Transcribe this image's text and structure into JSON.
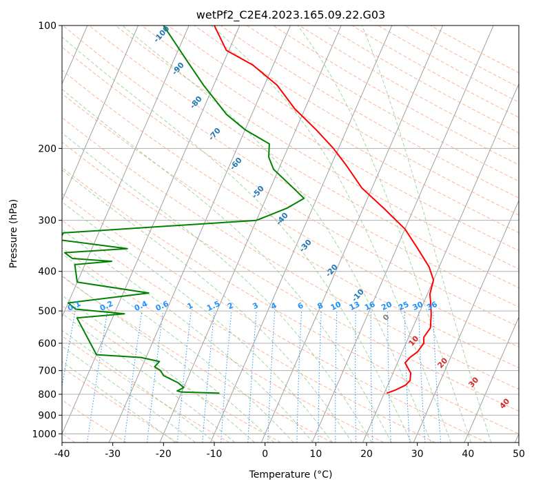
{
  "chart_data": {
    "type": "line",
    "title": "wetPf2_C2E4.2023.165.09.22.G03",
    "xlabel": "Temperature (°C)",
    "ylabel": "Pressure (hPa)",
    "xlim": [
      -40,
      50
    ],
    "ylim": [
      1050,
      100
    ],
    "y_scale": "log",
    "x_ticks": [
      -40,
      -30,
      -20,
      -10,
      0,
      10,
      20,
      30,
      40,
      50
    ],
    "y_ticks": [
      100,
      200,
      300,
      400,
      500,
      600,
      700,
      800,
      900,
      1000
    ],
    "skew_per_decade": 35,
    "temperature_profile": {
      "color": "#ff0000",
      "points": [
        [
          20.5,
          795
        ],
        [
          22,
          780
        ],
        [
          23.5,
          760
        ],
        [
          24,
          740
        ],
        [
          23.5,
          710
        ],
        [
          22.5,
          690
        ],
        [
          21.5,
          670
        ],
        [
          22,
          650
        ],
        [
          23,
          630
        ],
        [
          23.5,
          600
        ],
        [
          23,
          580
        ],
        [
          23.5,
          550
        ],
        [
          22.5,
          510
        ],
        [
          21.5,
          480
        ],
        [
          20.5,
          455
        ],
        [
          20,
          420
        ],
        [
          18,
          390
        ],
        [
          14,
          350
        ],
        [
          10,
          315
        ],
        [
          4,
          280
        ],
        [
          -2,
          250
        ],
        [
          -7,
          220
        ],
        [
          -11,
          200
        ],
        [
          -16,
          180
        ],
        [
          -22,
          160
        ],
        [
          -27.5,
          140
        ],
        [
          -34,
          125
        ],
        [
          -40.5,
          115
        ],
        [
          -45,
          100
        ]
      ]
    },
    "dewpoint_profile": {
      "color": "#008000",
      "points": [
        [
          -12.5,
          795
        ],
        [
          -20,
          790
        ],
        [
          -21,
          785
        ],
        [
          -20,
          770
        ],
        [
          -21.5,
          750
        ],
        [
          -25,
          720
        ],
        [
          -26,
          700
        ],
        [
          -27.5,
          685
        ],
        [
          -27,
          665
        ],
        [
          -31,
          650
        ],
        [
          -40,
          640
        ],
        [
          -47,
          520
        ],
        [
          -38,
          508
        ],
        [
          -48,
          495
        ],
        [
          -50,
          478
        ],
        [
          -35,
          452
        ],
        [
          -50,
          425
        ],
        [
          -52,
          385
        ],
        [
          -45,
          378
        ],
        [
          -53,
          372
        ],
        [
          -55,
          360
        ],
        [
          -43,
          352
        ],
        [
          -57,
          335
        ],
        [
          -57,
          322
        ],
        [
          -20,
          300
        ],
        [
          -15,
          280
        ],
        [
          -12.5,
          265
        ],
        [
          -15.5,
          250
        ],
        [
          -21,
          225
        ],
        [
          -23,
          210
        ],
        [
          -24,
          195
        ],
        [
          -30,
          180
        ],
        [
          -35,
          165
        ],
        [
          -42,
          140
        ],
        [
          -48,
          120
        ],
        [
          -55,
          100
        ]
      ]
    },
    "isotherm_labels": [
      "-100",
      "-90",
      "-80",
      "-70",
      "-60",
      "-50",
      "-40",
      "-30",
      "-20",
      "-10",
      "0",
      "10",
      "20",
      "30",
      "40"
    ],
    "mixing_ratio_labels": [
      "0.1",
      "0.2",
      "0.4",
      "0.6",
      "1",
      "1.5",
      "2",
      "3",
      "4",
      "6",
      "8",
      "10",
      "13",
      "16",
      "20",
      "25",
      "30",
      "36"
    ],
    "mixing_ratio_values": [
      0.1,
      0.2,
      0.4,
      0.6,
      1,
      1.5,
      2,
      3,
      4,
      6,
      8,
      10,
      13,
      16,
      20,
      25,
      30,
      36
    ],
    "grid": true,
    "colors": {
      "isotherm": "#a0a0a0",
      "dry_adiabat": "#ffa080",
      "moist_adiabat": "#90c890",
      "mixing_ratio": "#1e90ff",
      "isotherm_label_cold": "#1f77b4",
      "isotherm_label_warm": "#d62728",
      "isotherm_label_zero": "#808080"
    }
  }
}
